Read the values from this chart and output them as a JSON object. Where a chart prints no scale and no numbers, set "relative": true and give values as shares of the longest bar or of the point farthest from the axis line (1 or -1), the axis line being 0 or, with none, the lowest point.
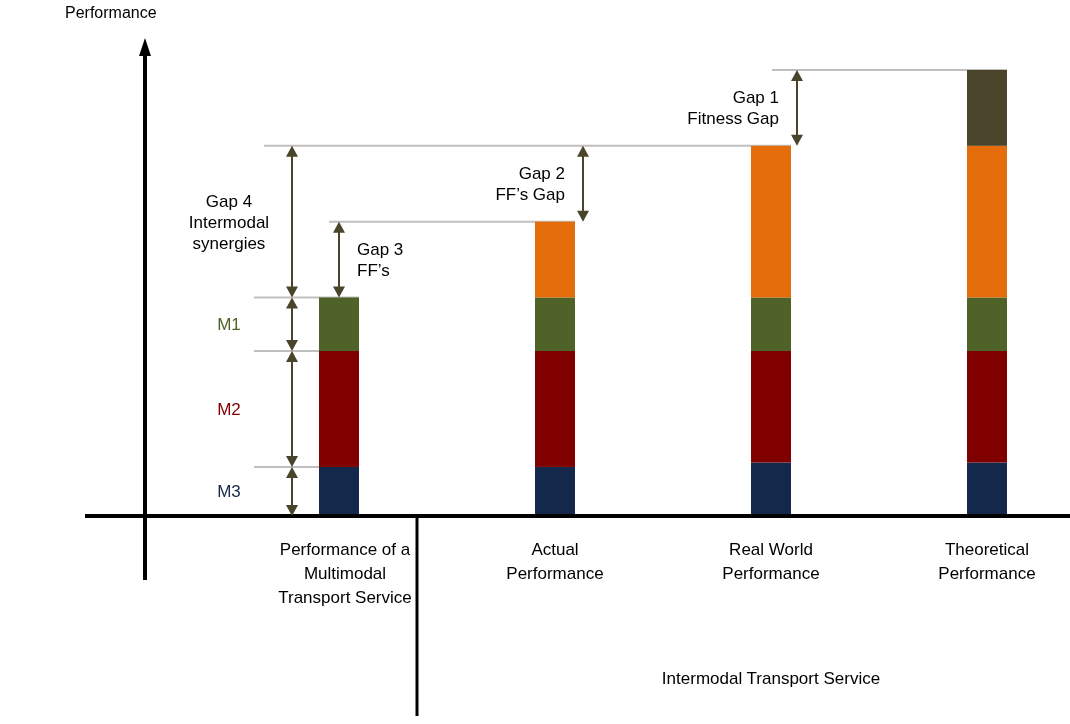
{
  "chart_data": {
    "type": "bar",
    "stacked": true,
    "relative": true,
    "ylabel": "Performance",
    "categories": [
      "Performance of a Multimodal Transport Service",
      "Actual Performance",
      "Real World Performance",
      "Theoretical Performance"
    ],
    "series": [
      {
        "name": "M3",
        "color": "#14284b",
        "values": [
          0.11,
          0.11,
          0.12,
          0.12
        ]
      },
      {
        "name": "M2",
        "color": "#800000",
        "values": [
          0.26,
          0.26,
          0.25,
          0.25
        ]
      },
      {
        "name": "M1",
        "color": "#4f6228",
        "values": [
          0.12,
          0.12,
          0.12,
          0.12
        ]
      },
      {
        "color": "#e46c0a",
        "values": [
          null,
          0.17,
          0.34,
          0.34
        ]
      },
      {
        "color": "#4a452a",
        "values": [
          null,
          null,
          null,
          0.17
        ]
      }
    ],
    "ref_lines": [
      {
        "axis": "y",
        "value": 1.0,
        "color": "#bfbfbf"
      },
      {
        "axis": "y",
        "value": 0.83,
        "color": "#bfbfbf"
      },
      {
        "axis": "y",
        "value": 0.66,
        "color": "#bfbfbf"
      },
      {
        "axis": "y",
        "value": 0.49,
        "color": "#bfbfbf"
      },
      {
        "axis": "y",
        "value": 0.37,
        "color": "#bfbfbf"
      },
      {
        "axis": "y",
        "value": 0.11,
        "color": "#bfbfbf"
      }
    ],
    "annotations": [
      "Gap 1 Fitness Gap",
      "Gap 2 FF’s Gap",
      "Gap 3 FF’s",
      "Gap 4 Intermodal synergies",
      "Intermodal Transport Service"
    ]
  }
}
